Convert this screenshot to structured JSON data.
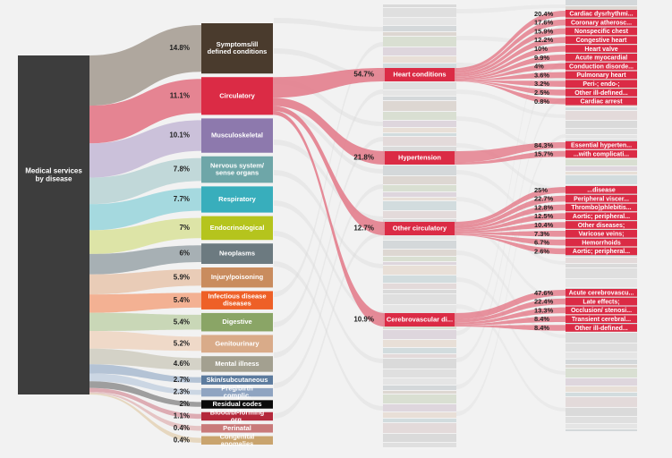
{
  "chart_data": {
    "type": "sankey",
    "root": {
      "label": "Medical services by disease",
      "color": "#3d3d3d"
    },
    "categories": [
      {
        "label": "Symptoms/ill defined conditions",
        "pct": "14.8%",
        "value": 14.8,
        "color": "#4a3b2d",
        "flow_color": "#a39a8f",
        "highlight": false
      },
      {
        "label": "Circulatory",
        "pct": "11.1%",
        "value": 11.1,
        "color": "#db2b45",
        "flow_color": "#e37887",
        "highlight": true
      },
      {
        "label": "Musculoskeletal",
        "pct": "10.1%",
        "value": 10.1,
        "color": "#8d79ad",
        "flow_color": "#c4b9d6",
        "highlight": false
      },
      {
        "label": "Nervous system/ sense organs",
        "pct": "7.8%",
        "value": 7.8,
        "color": "#6ea6a8",
        "flow_color": "#b8d4d5",
        "highlight": false
      },
      {
        "label": "Respiratory",
        "pct": "7.7%",
        "value": 7.7,
        "color": "#38aebc",
        "flow_color": "#98d5dc",
        "highlight": false
      },
      {
        "label": "Endocrinological",
        "pct": "7%",
        "value": 7.0,
        "color": "#b5c41d",
        "flow_color": "#d9e29a",
        "highlight": false
      },
      {
        "label": "Neoplasms",
        "pct": "6%",
        "value": 6.0,
        "color": "#6c7a80",
        "flow_color": "#9aa5a9",
        "highlight": false
      },
      {
        "label": "Injury/poisoning",
        "pct": "5.9%",
        "value": 5.9,
        "color": "#c98c5e",
        "flow_color": "#e7c6ad",
        "highlight": false
      },
      {
        "label": "Infectious disease diseases",
        "pct": "5.4%",
        "value": 5.4,
        "color": "#ee6027",
        "flow_color": "#f3a682",
        "highlight": false
      },
      {
        "label": "Digestive",
        "pct": "5.4%",
        "value": 5.4,
        "color": "#8aa566",
        "flow_color": "#c2d2ad",
        "highlight": false
      },
      {
        "label": "Genitourinary",
        "pct": "5.2%",
        "value": 5.2,
        "color": "#d9ab89",
        "flow_color": "#eed5c1",
        "highlight": false
      },
      {
        "label": "Mental illness",
        "pct": "4.6%",
        "value": 4.6,
        "color": "#a3a090",
        "flow_color": "#cfccc0",
        "highlight": false
      },
      {
        "label": "Skin/subcutaneous",
        "pct": "2.7%",
        "value": 2.7,
        "color": "#5c7b9e",
        "flow_color": "#a9bbd0",
        "highlight": false
      },
      {
        "label": "Preg/birth complic.",
        "pct": "2.3%",
        "value": 2.3,
        "color": "#8fa4c1",
        "flow_color": "#c4d1e0",
        "highlight": false
      },
      {
        "label": "Residual codes",
        "pct": "2%",
        "value": 2.0,
        "color": "#0a0a0a",
        "flow_color": "#8f8f8f",
        "highlight": false
      },
      {
        "label": "Blood/bl-forming org.",
        "pct": "1.1%",
        "value": 1.1,
        "color": "#b4283b",
        "flow_color": "#d9a0a8",
        "highlight": false
      },
      {
        "label": "Perinatal",
        "pct": "0.4%",
        "value": 0.4,
        "color": "#c97a7a",
        "flow_color": "#e3bcbc",
        "highlight": false
      },
      {
        "label": "Congenital anomalies",
        "pct": "0.4%",
        "value": 0.4,
        "color": "#c9a46e",
        "flow_color": "#e4d2b6",
        "highlight": false
      }
    ],
    "level2": [
      {
        "label": "Heart conditions",
        "pct": "54.7%",
        "value": 54.7,
        "children": [
          {
            "label": "Cardiac dysrhythmi...",
            "pct": "20.4%",
            "value": 20.4
          },
          {
            "label": "Coronary atherosc...",
            "pct": "17.6%",
            "value": 17.6
          },
          {
            "label": "Nonspecific chest",
            "pct": "15.9%",
            "value": 15.9
          },
          {
            "label": "Congestive heart",
            "pct": "12.2%",
            "value": 12.2
          },
          {
            "label": "Heart valve",
            "pct": "10%",
            "value": 10.0
          },
          {
            "label": "Acute myocardial",
            "pct": "9.9%",
            "value": 9.9
          },
          {
            "label": "Conduction disorde...",
            "pct": "4%",
            "value": 4.0
          },
          {
            "label": "Pulmonary heart",
            "pct": "3.6%",
            "value": 3.6
          },
          {
            "label": "Peri-; endo-;",
            "pct": "3.2%",
            "value": 3.2
          },
          {
            "label": "Other ill-defined...",
            "pct": "2.5%",
            "value": 2.5
          },
          {
            "label": "Cardiac arrest",
            "pct": "0.8%",
            "value": 0.8
          }
        ]
      },
      {
        "label": "Hypertension",
        "pct": "21.8%",
        "value": 21.8,
        "children": [
          {
            "label": "Essential hyperten...",
            "pct": "84.3%",
            "value": 84.3
          },
          {
            "label": "...with complicati...",
            "pct": "15.7%",
            "value": 15.7
          }
        ]
      },
      {
        "label": "Other circulatory",
        "pct": "12.7%",
        "value": 12.7,
        "children": [
          {
            "label": "...disease",
            "pct": "25%",
            "value": 25.0
          },
          {
            "label": "Peripheral viscer...",
            "pct": "22.7%",
            "value": 22.7
          },
          {
            "label": "Thrombo)phlebitis...",
            "pct": "12.8%",
            "value": 12.8
          },
          {
            "label": "Aortic; peripheral...",
            "pct": "12.5%",
            "value": 12.5
          },
          {
            "label": "Other diseases;",
            "pct": "10.4%",
            "value": 10.4
          },
          {
            "label": "Varicose veins;",
            "pct": "7.3%",
            "value": 7.3
          },
          {
            "label": "Hemorrhoids",
            "pct": "6.7%",
            "value": 6.7
          },
          {
            "label": "Aortic; peripheral...",
            "pct": "2.6%",
            "value": 2.6
          }
        ]
      },
      {
        "label": "Cerebrovascular di...",
        "pct": "10.9%",
        "value": 10.9,
        "children": [
          {
            "label": "Acute cerebrovascu...",
            "pct": "47.6%",
            "value": 47.6
          },
          {
            "label": "Late effects;",
            "pct": "22.4%",
            "value": 22.4
          },
          {
            "label": "Occlusion/ stenosi...",
            "pct": "13.3%",
            "value": 13.3
          },
          {
            "label": "Transient cerebral...",
            "pct": "8.4%",
            "value": 8.4
          },
          {
            "label": "Other ill-defined...",
            "pct": "8.4%",
            "value": 8.4
          }
        ]
      }
    ]
  }
}
